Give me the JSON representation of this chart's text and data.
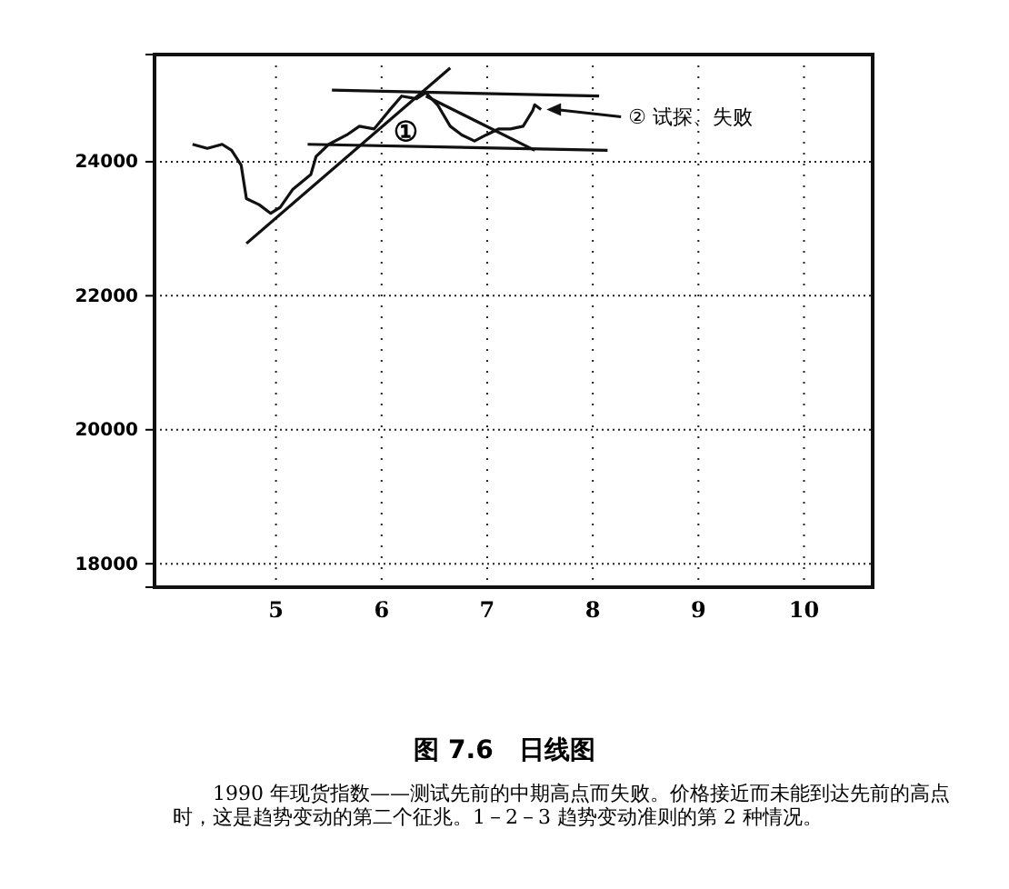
{
  "chart_data": {
    "type": "line",
    "title": "图 7.6　日线图",
    "xlim": [
      3.85,
      10.65
    ],
    "ylim": [
      17650,
      25600
    ],
    "xticks": [
      5,
      6,
      7,
      8,
      9,
      10
    ],
    "yticks": [
      18000,
      20000,
      22000,
      24000
    ],
    "grid": true,
    "marker": "none",
    "line_style": "solid",
    "series": [
      {
        "color": "#111111",
        "x": [
          4.21,
          4.35,
          4.49,
          4.58,
          4.67,
          4.72,
          4.84,
          4.95,
          5.04,
          5.16,
          5.33,
          5.38,
          5.5,
          5.67,
          5.79,
          5.93,
          6.07,
          6.19,
          6.33,
          6.42,
          6.53,
          6.65,
          6.76,
          6.88,
          6.99,
          7.11,
          7.22,
          7.34,
          7.43,
          7.45,
          7.51
        ],
        "values": [
          24260,
          24200,
          24260,
          24170,
          23950,
          23450,
          23360,
          23230,
          23320,
          23590,
          23810,
          24080,
          24260,
          24400,
          24530,
          24490,
          24760,
          24980,
          24940,
          25030,
          24850,
          24530,
          24400,
          24310,
          24400,
          24490,
          24490,
          24530,
          24760,
          24850,
          24780
        ]
      },
      {
        "type": "line",
        "color": "#111111",
        "x": [
          4.72,
          6.65
        ],
        "values": [
          22780,
          25400
        ]
      },
      {
        "type": "line",
        "color": "#111111",
        "x": [
          5.53,
          8.06
        ],
        "values": [
          25070,
          24980
        ]
      },
      {
        "type": "line",
        "color": "#111111",
        "x": [
          5.3,
          8.14
        ],
        "values": [
          24260,
          24170
        ]
      },
      {
        "type": "line",
        "color": "#111111",
        "x": [
          6.42,
          7.45
        ],
        "values": [
          24980,
          24170
        ]
      }
    ],
    "annotations": [
      "①",
      "② 试探、失败",
      "1990 年现货指数——测试先前的中期高点而失败。价格接近而未能到达先前的高点时，这是趋势变动的第二个征兆。1－2－3 趋势变动准则的第 2 种情况。"
    ]
  }
}
